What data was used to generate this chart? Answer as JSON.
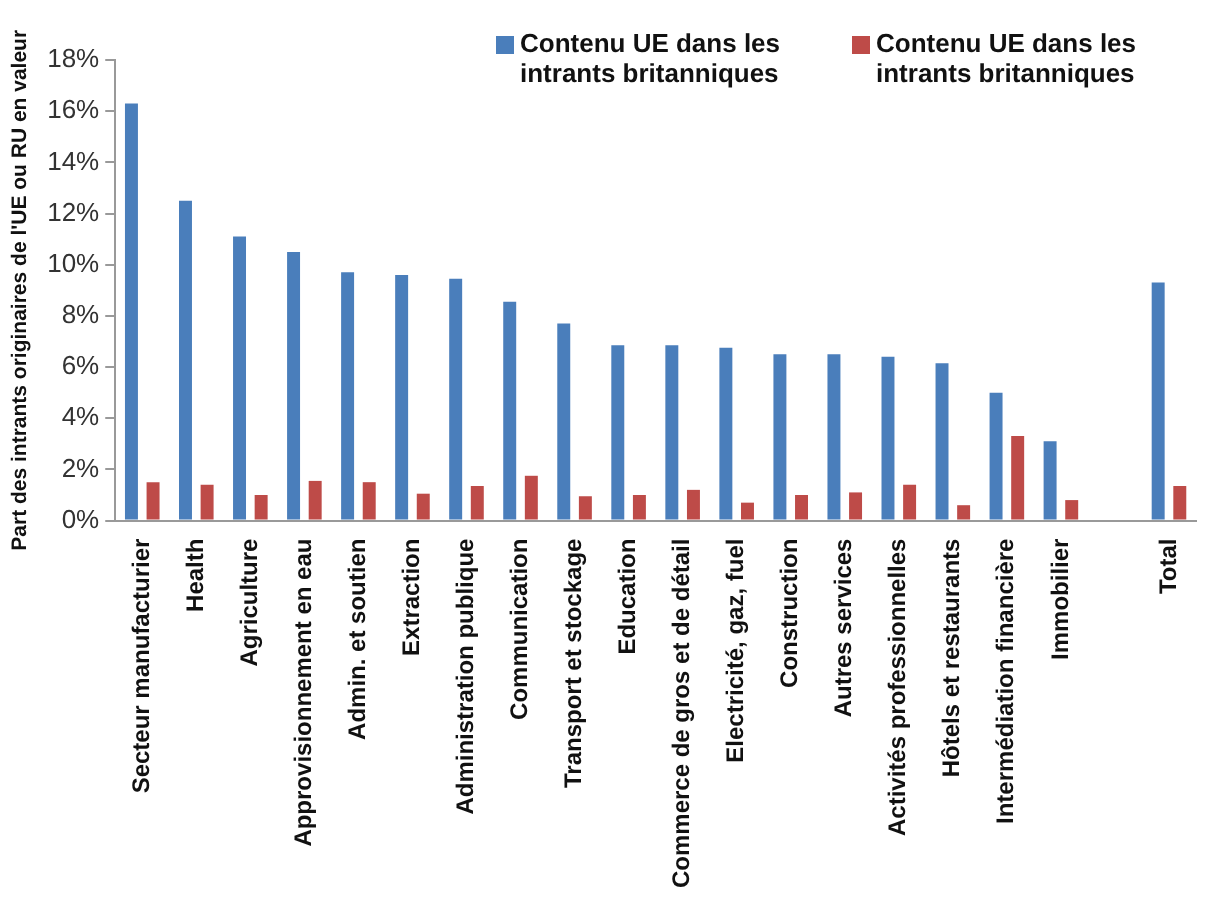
{
  "chart_data": {
    "type": "bar",
    "ylabel": "Part des intrants originaires de l'UE ou RU en valeur",
    "categories": [
      "Secteur manufacturier",
      "Health",
      "Agriculture",
      "Approvisionnement en eau",
      "Admin. et soutien",
      "Extraction",
      "Administration publique",
      "Communication",
      "Transport et stockage",
      "Education",
      "Commerce de gros et de détail",
      "Electricité, gaz, fuel",
      "Construction",
      "Autres services",
      "Activités professionnelles",
      "Hôtels et restaurants",
      "Intermédiation financière",
      "Immobilier",
      null,
      "Total"
    ],
    "series": [
      {
        "name": "Contenu UE dans les intrants britanniques",
        "color": "#4a7ebb",
        "values": [
          16.3,
          12.5,
          11.1,
          10.5,
          9.7,
          9.6,
          9.45,
          8.55,
          7.7,
          6.85,
          6.85,
          6.75,
          6.5,
          6.5,
          6.4,
          6.15,
          5.0,
          3.1,
          null,
          9.3
        ]
      },
      {
        "name": "Contenu UE dans les intrants britanniques",
        "color": "#be4b48",
        "values": [
          1.5,
          1.4,
          1.0,
          1.55,
          1.5,
          1.05,
          1.35,
          1.75,
          0.95,
          1.0,
          1.2,
          0.7,
          1.0,
          1.1,
          1.4,
          0.6,
          3.3,
          0.8,
          null,
          1.35
        ]
      }
    ],
    "ylim": [
      0,
      18
    ],
    "yticks": [
      {
        "value": 0,
        "label": "0%"
      },
      {
        "value": 2,
        "label": "2%"
      },
      {
        "value": 4,
        "label": "4%"
      },
      {
        "value": 6,
        "label": "6%"
      },
      {
        "value": 8,
        "label": "8%"
      },
      {
        "value": 10,
        "label": "10%"
      },
      {
        "value": 12,
        "label": "12%"
      },
      {
        "value": 14,
        "label": "14%"
      },
      {
        "value": 16,
        "label": "16%"
      },
      {
        "value": 18,
        "label": "18%"
      }
    ],
    "grid": false,
    "legend": "top right"
  }
}
